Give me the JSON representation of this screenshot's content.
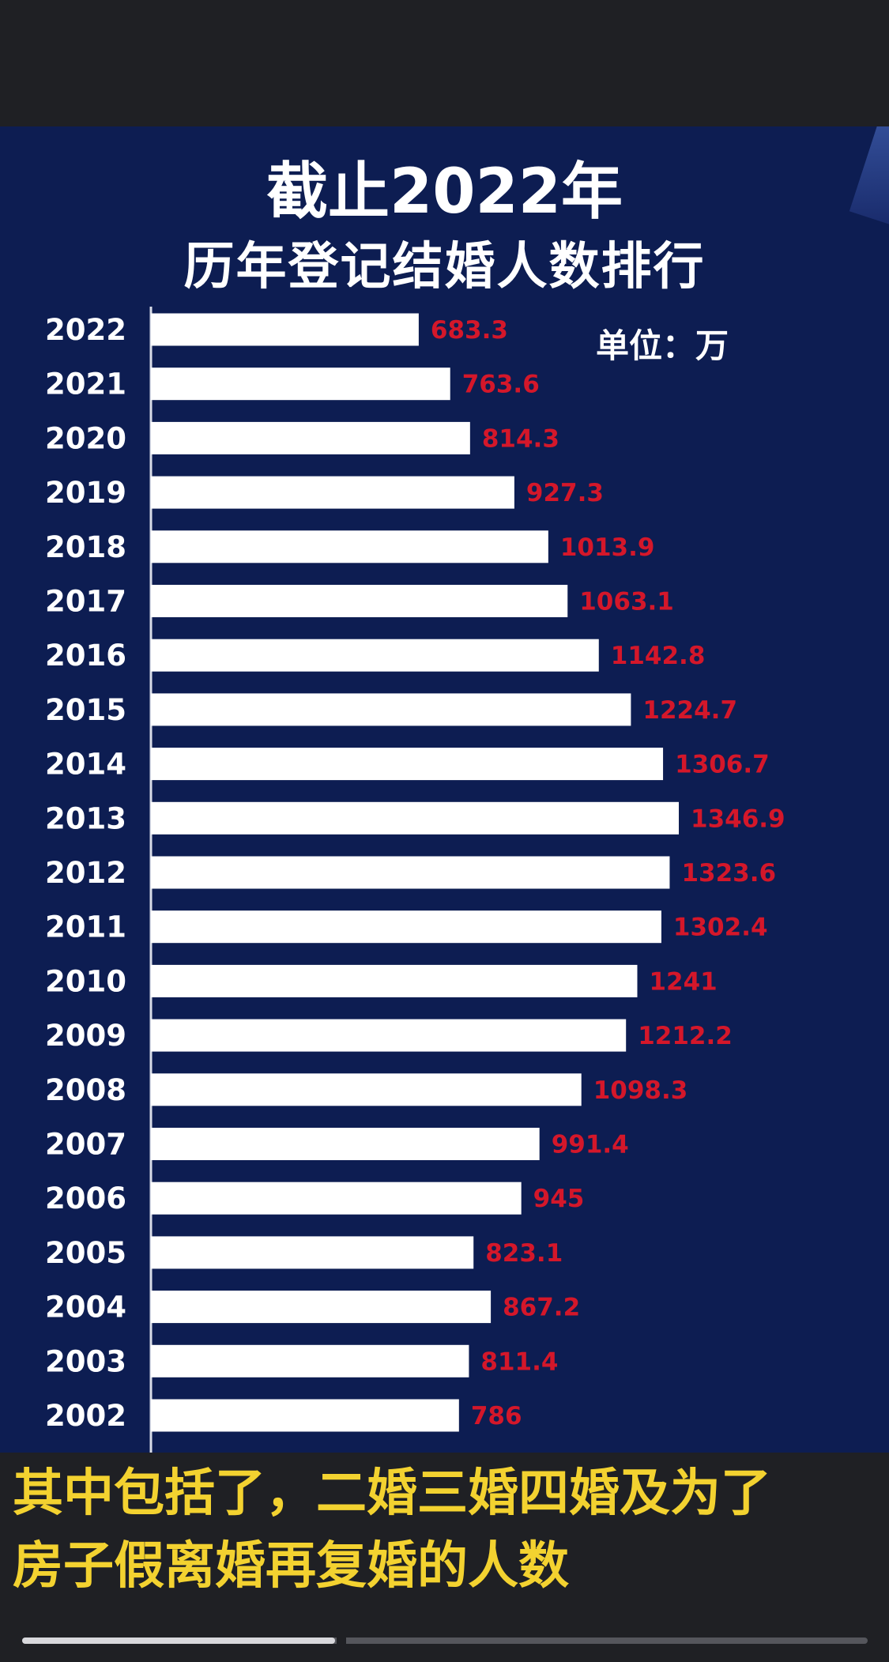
{
  "caption": {
    "line1": "其中包括了，二婚三婚四婚及为了",
    "line2": "房子假离婚再复婚的人数"
  },
  "video": {
    "progress": 0.37
  },
  "colors": {
    "panel": "#0d1d52",
    "bar": "#ffffff",
    "value_label": "#d4172a",
    "caption": "#f3d230"
  },
  "chart_data": {
    "type": "bar",
    "orientation": "horizontal",
    "title": "截止2022年",
    "subtitle": "历年登记结婚人数排行",
    "unit": "单位：万",
    "categories": [
      "2022",
      "2021",
      "2020",
      "2019",
      "2018",
      "2017",
      "2016",
      "2015",
      "2014",
      "2013",
      "2012",
      "2011",
      "2010",
      "2009",
      "2008",
      "2007",
      "2006",
      "2005",
      "2004",
      "2003",
      "2002"
    ],
    "value_labels": [
      "683.3",
      "763.6",
      "814.3",
      "927.3",
      "1013.9",
      "1063.1",
      "1142.8",
      "1224.7",
      "1306.7",
      "1346.9",
      "1323.6",
      "1302.4",
      "1241",
      "1212.2",
      "1098.3",
      "991.4",
      "945",
      "823.1",
      "867.2",
      "811.4",
      "786"
    ],
    "values": [
      683.3,
      763.6,
      814.3,
      927.3,
      1013.9,
      1063.1,
      1142.8,
      1224.7,
      1306.7,
      1346.9,
      1323.6,
      1302.4,
      1241,
      1212.2,
      1098.3,
      991.4,
      945,
      823.1,
      867.2,
      811.4,
      786
    ],
    "xlim": [
      0,
      1346.9
    ],
    "grid": false,
    "legend": "none"
  }
}
